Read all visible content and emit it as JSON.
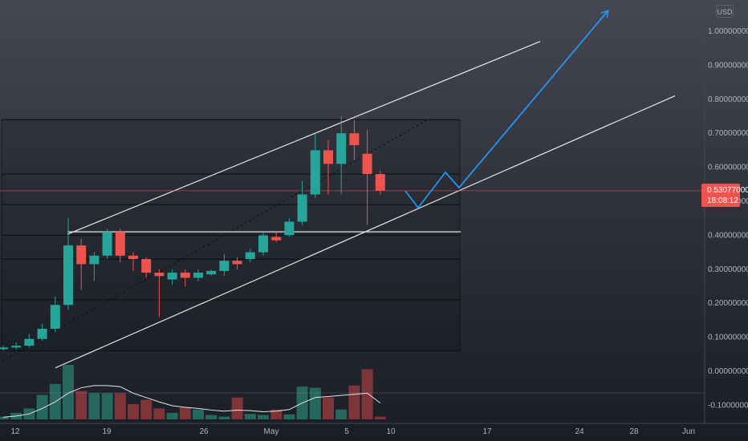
{
  "currency": "USD",
  "current_price": {
    "value": "0.53077000",
    "countdown": "18:08:12"
  },
  "colors": {
    "background": "#1e222d",
    "up": "#26a69a",
    "down": "#ef5350",
    "volume_up": "#26675f",
    "volume_down": "#7e3539",
    "projection": "#2196f3",
    "channel": "#e6e6e6",
    "price_tag": "#ef5350"
  },
  "chart_data": {
    "type": "candlestick",
    "y_axis": {
      "ticks": [
        "1.00000000",
        "0.90000000",
        "0.80000000",
        "0.70000000",
        "0.60000000",
        "0.50000000",
        "0.40000000",
        "0.30000000",
        "0.20000000",
        "0.10000000",
        "0.00000000",
        "-0.10000000"
      ],
      "range": [
        -0.13,
        1.08
      ]
    },
    "x_axis": {
      "ticks": [
        "12",
        "19",
        "26",
        "May",
        "5",
        "10",
        "17",
        "24",
        "28",
        "Jun"
      ]
    },
    "candles": [
      {
        "date": "Apr 12",
        "open": 0.065,
        "high": 0.075,
        "low": 0.06,
        "close": 0.07
      },
      {
        "date": "Apr 13",
        "open": 0.07,
        "high": 0.085,
        "low": 0.065,
        "close": 0.075
      },
      {
        "date": "Apr 14",
        "open": 0.075,
        "high": 0.11,
        "low": 0.07,
        "close": 0.095
      },
      {
        "date": "Apr 15",
        "open": 0.095,
        "high": 0.14,
        "low": 0.09,
        "close": 0.125
      },
      {
        "date": "Apr 16",
        "open": 0.125,
        "high": 0.22,
        "low": 0.115,
        "close": 0.195
      },
      {
        "date": "Apr 17",
        "open": 0.195,
        "high": 0.45,
        "low": 0.18,
        "close": 0.37
      },
      {
        "date": "Apr 18",
        "open": 0.37,
        "high": 0.39,
        "low": 0.24,
        "close": 0.315
      },
      {
        "date": "Apr 19",
        "open": 0.315,
        "high": 0.35,
        "low": 0.265,
        "close": 0.34
      },
      {
        "date": "Apr 20",
        "open": 0.34,
        "high": 0.42,
        "low": 0.33,
        "close": 0.41
      },
      {
        "date": "Apr 21",
        "open": 0.41,
        "high": 0.42,
        "low": 0.32,
        "close": 0.34
      },
      {
        "date": "Apr 22",
        "open": 0.34,
        "high": 0.35,
        "low": 0.295,
        "close": 0.33
      },
      {
        "date": "Apr 23",
        "open": 0.33,
        "high": 0.335,
        "low": 0.275,
        "close": 0.29
      },
      {
        "date": "Apr 24",
        "open": 0.29,
        "high": 0.3,
        "low": 0.16,
        "close": 0.28
      },
      {
        "date": "Apr 25",
        "open": 0.27,
        "high": 0.3,
        "low": 0.255,
        "close": 0.29
      },
      {
        "date": "Apr 26",
        "open": 0.29,
        "high": 0.3,
        "low": 0.25,
        "close": 0.275
      },
      {
        "date": "Apr 27",
        "open": 0.275,
        "high": 0.3,
        "low": 0.265,
        "close": 0.29
      },
      {
        "date": "Apr 28",
        "open": 0.285,
        "high": 0.3,
        "low": 0.28,
        "close": 0.295
      },
      {
        "date": "Apr 29",
        "open": 0.295,
        "high": 0.345,
        "low": 0.28,
        "close": 0.325
      },
      {
        "date": "Apr 30",
        "open": 0.325,
        "high": 0.335,
        "low": 0.3,
        "close": 0.315
      },
      {
        "date": "May 1",
        "open": 0.33,
        "high": 0.36,
        "low": 0.32,
        "close": 0.35
      },
      {
        "date": "May 2",
        "open": 0.35,
        "high": 0.41,
        "low": 0.34,
        "close": 0.4
      },
      {
        "date": "May 3",
        "open": 0.395,
        "high": 0.41,
        "low": 0.38,
        "close": 0.385
      },
      {
        "date": "May 4",
        "open": 0.4,
        "high": 0.45,
        "low": 0.395,
        "close": 0.44
      },
      {
        "date": "May 5",
        "open": 0.44,
        "high": 0.56,
        "low": 0.43,
        "close": 0.52
      },
      {
        "date": "May 6",
        "open": 0.52,
        "high": 0.7,
        "low": 0.51,
        "close": 0.65
      },
      {
        "date": "May 7",
        "open": 0.65,
        "high": 0.68,
        "low": 0.52,
        "close": 0.61
      },
      {
        "date": "May 8",
        "open": 0.61,
        "high": 0.75,
        "low": 0.52,
        "close": 0.7
      },
      {
        "date": "May 9",
        "open": 0.7,
        "high": 0.74,
        "low": 0.62,
        "close": 0.665
      },
      {
        "date": "May 10",
        "open": 0.64,
        "high": 0.71,
        "low": 0.43,
        "close": 0.58
      },
      {
        "date": "May 11",
        "open": 0.58,
        "high": 0.59,
        "low": 0.52,
        "close": 0.531
      }
    ],
    "volume": [
      0.05,
      0.12,
      0.2,
      0.45,
      0.65,
      1.0,
      0.52,
      0.48,
      0.48,
      0.48,
      0.28,
      0.36,
      0.2,
      0.12,
      0.22,
      0.18,
      0.08,
      0.05,
      0.4,
      0.1,
      0.08,
      0.18,
      0.09,
      0.6,
      0.58,
      0.4,
      0.18,
      0.62,
      0.92,
      0.05
    ],
    "volume_ma": [
      0.04,
      0.06,
      0.1,
      0.2,
      0.32,
      0.48,
      0.58,
      0.62,
      0.62,
      0.6,
      0.48,
      0.4,
      0.32,
      0.25,
      0.22,
      0.2,
      0.17,
      0.15,
      0.17,
      0.16,
      0.14,
      0.15,
      0.18,
      0.3,
      0.4,
      0.42,
      0.44,
      0.46,
      0.48,
      0.3
    ],
    "fib_levels": [
      0.74,
      0.58,
      0.49,
      0.4,
      0.33,
      0.21,
      0.06
    ],
    "support_line": 0.41
  }
}
